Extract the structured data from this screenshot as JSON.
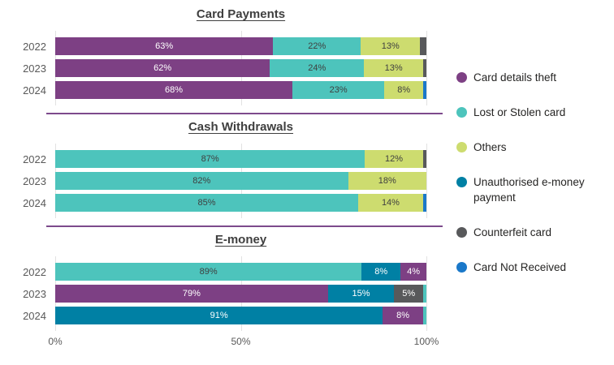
{
  "colors": {
    "card_details_theft": "#7d4084",
    "lost_or_stolen_card": "#4dc4bc",
    "others": "#cddc6f",
    "unauthorised_emoney_payment": "#0080a4",
    "counterfeit_card": "#58595b",
    "card_not_received": "#1a78c9",
    "divider": "#7d4a8c",
    "gridline": "#e2e2e2",
    "label_dark": "#3f3f3f",
    "label_light": "#ffffff"
  },
  "dark_label_series": [
    "lost_or_stolen_card",
    "others"
  ],
  "x_axis": {
    "ticks": [
      {
        "label": "0%",
        "pos": 0
      },
      {
        "label": "50%",
        "pos": 50
      },
      {
        "label": "100%",
        "pos": 100
      }
    ]
  },
  "legend": {
    "items": [
      {
        "series": "card_details_theft",
        "label": "Card details theft"
      },
      {
        "series": "lost_or_stolen_card",
        "label": "Lost or Stolen card"
      },
      {
        "series": "others",
        "label": "Others"
      },
      {
        "series": "unauthorised_emoney_payment",
        "label": "Unauthorised e-money payment"
      },
      {
        "series": "counterfeit_card",
        "label": "Counterfeit card"
      },
      {
        "series": "card_not_received",
        "label": "Card Not Received"
      }
    ]
  },
  "chart_data": [
    {
      "type": "bar",
      "orientation": "horizontal",
      "stacked": true,
      "title": "Card Payments",
      "categories": [
        "2022",
        "2023",
        "2024"
      ],
      "xlim": [
        0,
        100
      ],
      "xlabel": "",
      "ylabel": "",
      "rows": [
        {
          "year": "2022",
          "segments": [
            {
              "series": "card_details_theft",
              "value": 63,
              "label": "63%"
            },
            {
              "series": "lost_or_stolen_card",
              "value": 22,
              "label": "22%"
            },
            {
              "series": "others",
              "value": 13,
              "label": "13%"
            },
            {
              "series": "counterfeit_card",
              "value": 2,
              "label": ""
            }
          ]
        },
        {
          "year": "2023",
          "segments": [
            {
              "series": "card_details_theft",
              "value": 62,
              "label": "62%"
            },
            {
              "series": "lost_or_stolen_card",
              "value": 24,
              "label": "24%"
            },
            {
              "series": "others",
              "value": 13,
              "label": "13%"
            },
            {
              "series": "counterfeit_card",
              "value": 1,
              "label": ""
            }
          ]
        },
        {
          "year": "2024",
          "segments": [
            {
              "series": "card_details_theft",
              "value": 68,
              "label": "68%"
            },
            {
              "series": "lost_or_stolen_card",
              "value": 23,
              "label": "23%"
            },
            {
              "series": "others",
              "value": 8,
              "label": "8%"
            },
            {
              "series": "card_not_received",
              "value": 1,
              "label": ""
            }
          ]
        }
      ]
    },
    {
      "type": "bar",
      "orientation": "horizontal",
      "stacked": true,
      "title": "Cash Withdrawals",
      "categories": [
        "2022",
        "2023",
        "2024"
      ],
      "xlim": [
        0,
        100
      ],
      "xlabel": "",
      "ylabel": "",
      "rows": [
        {
          "year": "2022",
          "segments": [
            {
              "series": "lost_or_stolen_card",
              "value": 87,
              "label": "87%"
            },
            {
              "series": "others",
              "value": 12,
              "label": "12%"
            },
            {
              "series": "counterfeit_card",
              "value": 1,
              "label": ""
            }
          ]
        },
        {
          "year": "2023",
          "segments": [
            {
              "series": "lost_or_stolen_card",
              "value": 82,
              "label": "82%"
            },
            {
              "series": "others",
              "value": 18,
              "label": "18%"
            }
          ]
        },
        {
          "year": "2024",
          "segments": [
            {
              "series": "lost_or_stolen_card",
              "value": 85,
              "label": "85%"
            },
            {
              "series": "others",
              "value": 14,
              "label": "14%"
            },
            {
              "series": "card_not_received",
              "value": 1,
              "label": ""
            }
          ]
        }
      ]
    },
    {
      "type": "bar",
      "orientation": "horizontal",
      "stacked": true,
      "title": "E-money",
      "categories": [
        "2022",
        "2023",
        "2024"
      ],
      "xlim": [
        0,
        100
      ],
      "xlabel": "",
      "ylabel": "",
      "rows": [
        {
          "year": "2022",
          "segments": [
            {
              "series": "lost_or_stolen_card",
              "value": 89,
              "label": "89%"
            },
            {
              "series": "unauthorised_emoney_payment",
              "value": 8,
              "label": "8%"
            },
            {
              "series": "card_details_theft",
              "value": 4,
              "label": "4%"
            }
          ]
        },
        {
          "year": "2023",
          "segments": [
            {
              "series": "card_details_theft",
              "value": 79,
              "label": "79%"
            },
            {
              "series": "unauthorised_emoney_payment",
              "value": 15,
              "label": "15%"
            },
            {
              "series": "counterfeit_card",
              "value": 5,
              "label": "5%"
            },
            {
              "series": "lost_or_stolen_card",
              "value": 1,
              "label": ""
            }
          ]
        },
        {
          "year": "2024",
          "segments": [
            {
              "series": "unauthorised_emoney_payment",
              "value": 91,
              "label": "91%"
            },
            {
              "series": "card_details_theft",
              "value": 8,
              "label": "8%"
            },
            {
              "series": "lost_or_stolen_card",
              "value": 1,
              "label": ""
            }
          ]
        }
      ]
    }
  ]
}
